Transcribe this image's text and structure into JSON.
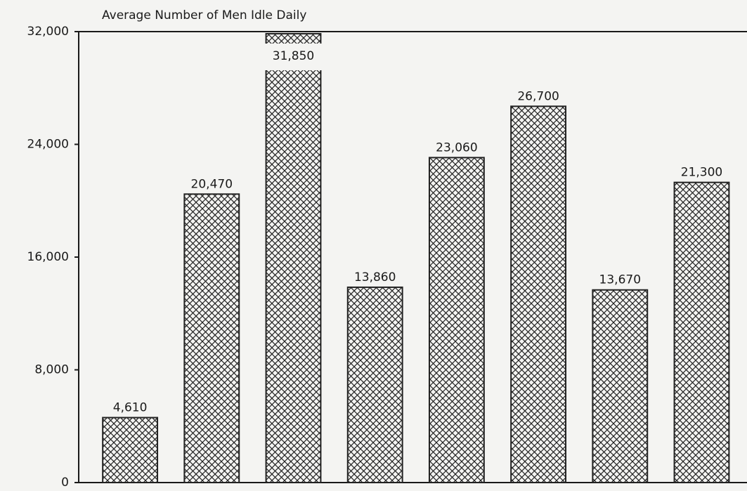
{
  "chart_data": {
    "type": "bar",
    "title": "Average Number of Men Idle Daily",
    "categories": [
      null,
      null,
      null,
      null,
      null,
      null,
      null,
      null
    ],
    "values": [
      4610,
      20470,
      31850,
      13860,
      23060,
      26700,
      13670,
      21300
    ],
    "value_labels": [
      "4,610",
      "20,470",
      "31,850",
      "13,860",
      "23,060",
      "26,700",
      "13,670",
      "21,300"
    ],
    "color": "#222222",
    "ylim": [
      0,
      32000
    ],
    "yticks": [
      0,
      {
        "value": 8000,
        "label": "8,000"
      },
      {
        "value": 16000,
        "label": "16,000"
      },
      {
        "value": 24000,
        "label": "24,000"
      },
      {
        "value": 32000,
        "label": "32,000"
      }
    ],
    "grid": false
  }
}
